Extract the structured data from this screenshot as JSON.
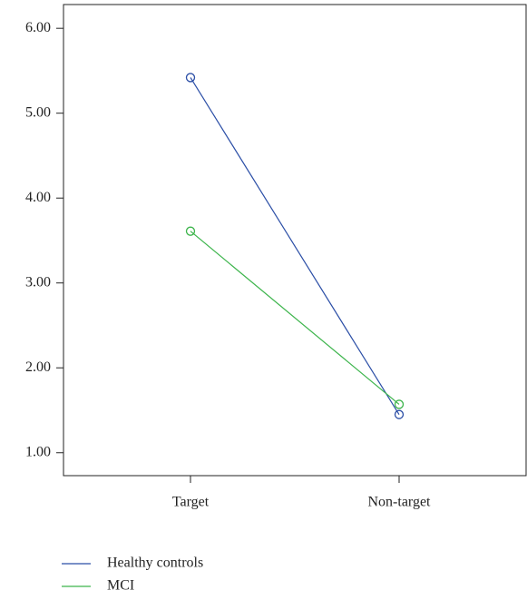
{
  "chart_data": {
    "type": "line",
    "categories": [
      "Target",
      "Non-target"
    ],
    "series": [
      {
        "name": "Healthy controls",
        "color": "#2b4ea6",
        "values": [
          5.42,
          1.45
        ]
      },
      {
        "name": "MCI",
        "color": "#3cb44b",
        "values": [
          3.61,
          1.57
        ]
      }
    ],
    "ylim": [
      0.73,
      6.28
    ],
    "yticks": [
      {
        "value": 1,
        "label": "1.00"
      },
      {
        "value": 2,
        "label": "2.00"
      },
      {
        "value": 3,
        "label": "3.00"
      },
      {
        "value": 4,
        "label": "4.00"
      },
      {
        "value": 5,
        "label": "5.00"
      },
      {
        "value": 6,
        "label": "6.00"
      }
    ],
    "markers": "open-circle"
  }
}
